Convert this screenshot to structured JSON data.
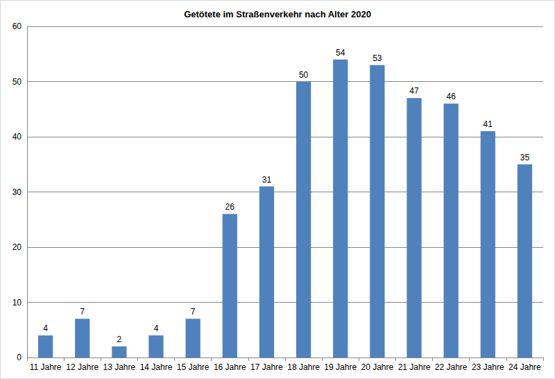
{
  "chart_data": {
    "type": "bar",
    "title": "Getötete im Straßenverkehr nach Alter 2020",
    "categories": [
      "11 Jahre",
      "12 Jahre",
      "13 Jahre",
      "14 Jahre",
      "15 Jahre",
      "16 Jahre",
      "17 Jahre",
      "18 Jahre",
      "19 Jahre",
      "20 Jahre",
      "21 Jahre",
      "22 Jahre",
      "23 Jahre",
      "24 Jahre"
    ],
    "values": [
      4,
      7,
      2,
      4,
      7,
      26,
      31,
      50,
      54,
      53,
      47,
      46,
      41,
      35
    ],
    "color": "#4f81bd",
    "ylim": [
      0,
      60
    ],
    "yticks": [
      0,
      10,
      20,
      30,
      40,
      50,
      60
    ],
    "grid": true,
    "data_labels": true
  }
}
